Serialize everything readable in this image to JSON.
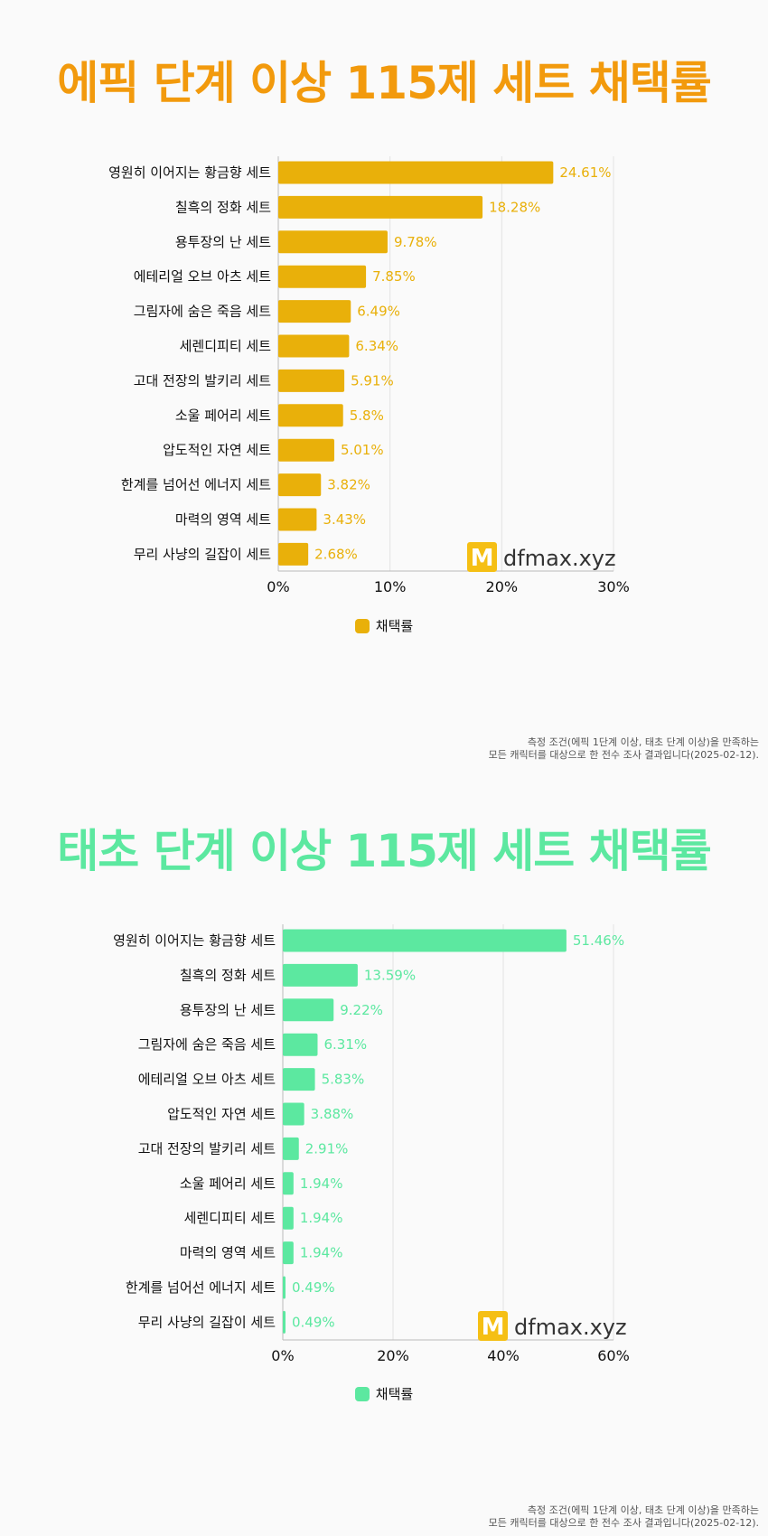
{
  "watermark": {
    "logo_letter": "M",
    "text": "dfmax.xyz"
  },
  "footnote": {
    "line1": "측정 조건(에픽 1단계 이상, 태초 단계 이상)을 만족하는",
    "line2": "모든 캐릭터를 대상으로 한 전수 조사 결과입니다(2025-02-12)."
  },
  "colors": {
    "epic": "#e9b00a",
    "epic_title": "#f29a0d",
    "primal": "#5ce8a0",
    "logo_bg": "#f5bf14"
  },
  "chart_data": [
    {
      "type": "bar",
      "orientation": "horizontal",
      "title": "에픽 단계 이상 115제 세트 채택률",
      "legend": "채택률",
      "legend_position": "bottom",
      "grid": true,
      "xlim": [
        0,
        30
      ],
      "ticks": [
        0,
        10,
        20,
        30
      ],
      "tick_labels": [
        "0%",
        "10%",
        "20%",
        "30%"
      ],
      "categories": [
        "영원히 이어지는 황금향 세트",
        "칠흑의 정화 세트",
        "용투장의 난 세트",
        "에테리얼 오브 아츠 세트",
        "그림자에 숨은 죽음 세트",
        "세렌디피티 세트",
        "고대 전장의 발키리 세트",
        "소울 페어리 세트",
        "압도적인 자연 세트",
        "한계를 넘어선 에너지 세트",
        "마력의 영역 세트",
        "무리 사냥의 길잡이 세트"
      ],
      "values": [
        24.61,
        18.28,
        9.78,
        7.85,
        6.49,
        6.34,
        5.91,
        5.8,
        5.01,
        3.82,
        3.43,
        2.68
      ],
      "value_labels": [
        "24.61%",
        "18.28%",
        "9.78%",
        "7.85%",
        "6.49%",
        "6.34%",
        "5.91%",
        "5.8%",
        "5.01%",
        "3.82%",
        "3.43%",
        "2.68%"
      ]
    },
    {
      "type": "bar",
      "orientation": "horizontal",
      "title": "태초 단계 이상 115제 세트 채택률",
      "legend": "채택률",
      "legend_position": "bottom",
      "grid": true,
      "xlim": [
        0,
        60
      ],
      "ticks": [
        0,
        20,
        40,
        60
      ],
      "tick_labels": [
        "0%",
        "20%",
        "40%",
        "60%"
      ],
      "categories": [
        "영원히 이어지는 황금향 세트",
        "칠흑의 정화 세트",
        "용투장의 난 세트",
        "그림자에 숨은 죽음 세트",
        "에테리얼 오브 아츠 세트",
        "압도적인 자연 세트",
        "고대 전장의 발키리 세트",
        "소울 페어리 세트",
        "세렌디피티 세트",
        "마력의 영역 세트",
        "한계를 넘어선 에너지 세트",
        "무리 사냥의 길잡이 세트"
      ],
      "values": [
        51.46,
        13.59,
        9.22,
        6.31,
        5.83,
        3.88,
        2.91,
        1.94,
        1.94,
        1.94,
        0.49,
        0.49
      ],
      "value_labels": [
        "51.46%",
        "13.59%",
        "9.22%",
        "6.31%",
        "5.83%",
        "3.88%",
        "2.91%",
        "1.94%",
        "1.94%",
        "1.94%",
        "0.49%",
        "0.49%"
      ]
    }
  ]
}
